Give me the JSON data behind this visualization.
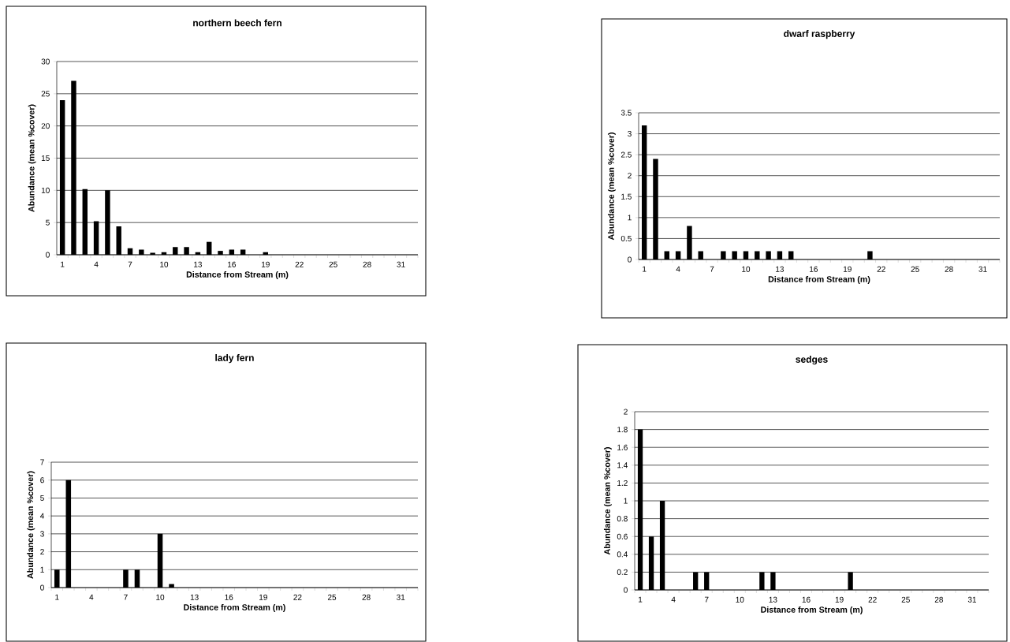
{
  "chart_data": [
    {
      "type": "bar",
      "title": "northern beech fern",
      "xlabel": "Distance from Stream (m)",
      "ylabel": "Abundance (mean %cover)",
      "categories": [
        "1",
        null,
        null,
        "4",
        null,
        null,
        "7",
        null,
        null,
        "10",
        null,
        null,
        "13",
        null,
        null,
        "16",
        null,
        null,
        "19",
        null,
        null,
        "22",
        null,
        null,
        "25",
        null,
        null,
        "28",
        null,
        null,
        "31",
        null
      ],
      "values": [
        24,
        27,
        10.2,
        5.2,
        10,
        4.4,
        1,
        0.8,
        0.3,
        0.4,
        1.2,
        1.2,
        0.4,
        2,
        0.6,
        0.8,
        0.8,
        0,
        0.4,
        0,
        0,
        0,
        0,
        0,
        0,
        0,
        0,
        0,
        0,
        0,
        0,
        0
      ],
      "color": "#000000",
      "ylim": [
        0,
        30
      ],
      "yticks": [
        0,
        5,
        10,
        15,
        20,
        25,
        30
      ],
      "grid": "y"
    },
    {
      "type": "bar",
      "title": "dwarf raspberry",
      "xlabel": "Distance from Stream (m)",
      "ylabel": "Abundance (mean %cover)",
      "categories": [
        "1",
        null,
        null,
        "4",
        null,
        null,
        "7",
        null,
        null,
        "10",
        null,
        null,
        "13",
        null,
        null,
        "16",
        null,
        null,
        "19",
        null,
        null,
        "22",
        null,
        null,
        "25",
        null,
        null,
        "28",
        null,
        null,
        "31",
        null
      ],
      "values": [
        3.2,
        2.4,
        0.2,
        0.2,
        0.8,
        0.2,
        0,
        0.2,
        0.2,
        0.2,
        0.2,
        0.2,
        0.2,
        0.2,
        0,
        0,
        0,
        0,
        0,
        0,
        0.2,
        0,
        0,
        0,
        0,
        0,
        0,
        0,
        0,
        0,
        0,
        0
      ],
      "color": "#000000",
      "ylim": [
        0,
        3.5
      ],
      "yticks": [
        0,
        0.5,
        1,
        1.5,
        2,
        2.5,
        3,
        3.5
      ],
      "grid": "y"
    },
    {
      "type": "bar",
      "title": "lady fern",
      "xlabel": "Distance from Stream (m)",
      "ylabel": "Abundance (mean %cover)",
      "categories": [
        "1",
        null,
        null,
        "4",
        null,
        null,
        "7",
        null,
        null,
        "10",
        null,
        null,
        "13",
        null,
        null,
        "16",
        null,
        null,
        "19",
        null,
        null,
        "22",
        null,
        null,
        "25",
        null,
        null,
        "28",
        null,
        null,
        "31",
        null
      ],
      "values": [
        1,
        6,
        0,
        0,
        0,
        0,
        1,
        1,
        0,
        3,
        0.2,
        0,
        0,
        0,
        0,
        0,
        0,
        0,
        0,
        0,
        0,
        0,
        0,
        0,
        0,
        0,
        0,
        0,
        0,
        0,
        0,
        0
      ],
      "color": "#000000",
      "ylim": [
        0,
        7
      ],
      "yticks": [
        0,
        1,
        2,
        3,
        4,
        5,
        6,
        7
      ],
      "grid": "y"
    },
    {
      "type": "bar",
      "title": "sedges",
      "xlabel": "Distance from Stream (m)",
      "ylabel": "Abundance (mean %cover)",
      "categories": [
        "1",
        null,
        null,
        "4",
        null,
        null,
        "7",
        null,
        null,
        "10",
        null,
        null,
        "13",
        null,
        null,
        "16",
        null,
        null,
        "19",
        null,
        null,
        "22",
        null,
        null,
        "25",
        null,
        null,
        "28",
        null,
        null,
        "31",
        null
      ],
      "values": [
        1.8,
        0.6,
        1,
        0,
        0,
        0.2,
        0.2,
        0,
        0,
        0,
        0,
        0.2,
        0.2,
        0,
        0,
        0,
        0,
        0,
        0,
        0.2,
        0,
        0,
        0,
        0,
        0,
        0,
        0,
        0,
        0,
        0,
        0,
        0
      ],
      "color": "#000000",
      "ylim": [
        0,
        2
      ],
      "yticks": [
        0,
        0.2,
        0.4,
        0.6,
        0.8,
        1,
        1.2,
        1.4,
        1.6,
        1.8,
        2
      ],
      "grid": "y"
    }
  ]
}
